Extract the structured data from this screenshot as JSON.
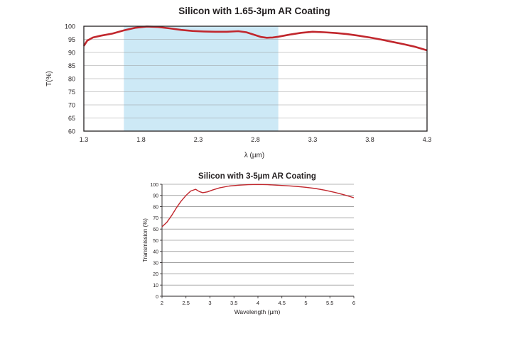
{
  "chart_data": [
    {
      "type": "line",
      "title": "Silicon with 1.65-3µm AR Coating",
      "xlabel": "λ (µm)",
      "ylabel": "T(%)",
      "xlim": [
        1.3,
        4.3
      ],
      "ylim": [
        60,
        100
      ],
      "x_ticks": [
        "1.3",
        "1.8",
        "2.3",
        "2.8",
        "3.3",
        "3.8",
        "4.3"
      ],
      "y_ticks": [
        "60",
        "65",
        "70",
        "75",
        "80",
        "85",
        "90",
        "95",
        "100"
      ],
      "grid": true,
      "highlight_band": [
        1.65,
        3.0
      ],
      "colors": {
        "line": "#c1272d",
        "band": "#cde9f6",
        "grid": "#9a9a9a",
        "axis": "#231f20"
      },
      "series": [
        {
          "x": [
            1.3,
            1.33,
            1.38,
            1.45,
            1.55,
            1.65,
            1.75,
            1.85,
            1.95,
            2.05,
            2.15,
            2.25,
            2.35,
            2.45,
            2.55,
            2.65,
            2.72,
            2.8,
            2.85,
            2.9,
            2.95,
            3.0,
            3.1,
            3.2,
            3.3,
            3.4,
            3.5,
            3.6,
            3.7,
            3.8,
            3.9,
            4.0,
            4.1,
            4.2,
            4.3
          ],
          "y": [
            92.5,
            94.5,
            95.7,
            96.4,
            97.2,
            98.4,
            99.4,
            99.9,
            99.7,
            99.2,
            98.6,
            98.2,
            98.0,
            97.9,
            97.9,
            98.1,
            97.7,
            96.6,
            95.9,
            95.6,
            95.7,
            96.0,
            96.8,
            97.5,
            97.9,
            97.7,
            97.4,
            97.0,
            96.4,
            95.7,
            94.9,
            94.0,
            93.1,
            92.1,
            90.8
          ]
        }
      ]
    },
    {
      "type": "line",
      "title": "Silicon with 3-5µm AR Coating",
      "xlabel": "Wavelength (µm)",
      "ylabel": "Transmission (%)",
      "xlim": [
        2,
        6
      ],
      "ylim": [
        0,
        100
      ],
      "x_ticks": [
        "2",
        "2.5",
        "3",
        "3.5",
        "4",
        "4.5",
        "5",
        "5.5",
        "6"
      ],
      "y_ticks": [
        "0",
        "10",
        "20",
        "30",
        "40",
        "50",
        "60",
        "70",
        "80",
        "90",
        "100"
      ],
      "grid": true,
      "colors": {
        "line": "#c1272d",
        "grid": "#9a9a9a",
        "axis": "#231f20"
      },
      "series": [
        {
          "x": [
            2.0,
            2.1,
            2.2,
            2.3,
            2.4,
            2.5,
            2.6,
            2.7,
            2.78,
            2.85,
            2.95,
            3.05,
            3.2,
            3.4,
            3.6,
            3.8,
            4.0,
            4.2,
            4.4,
            4.6,
            4.8,
            5.0,
            5.2,
            5.4,
            5.6,
            5.8,
            6.0
          ],
          "y": [
            62,
            66,
            72,
            79,
            85,
            90,
            94,
            95.5,
            93.5,
            92.5,
            93.2,
            94.8,
            96.8,
            98.4,
            99.2,
            99.6,
            99.8,
            99.6,
            99.2,
            98.7,
            98.1,
            97.3,
            96.2,
            94.7,
            92.8,
            90.6,
            88
          ]
        }
      ]
    }
  ]
}
